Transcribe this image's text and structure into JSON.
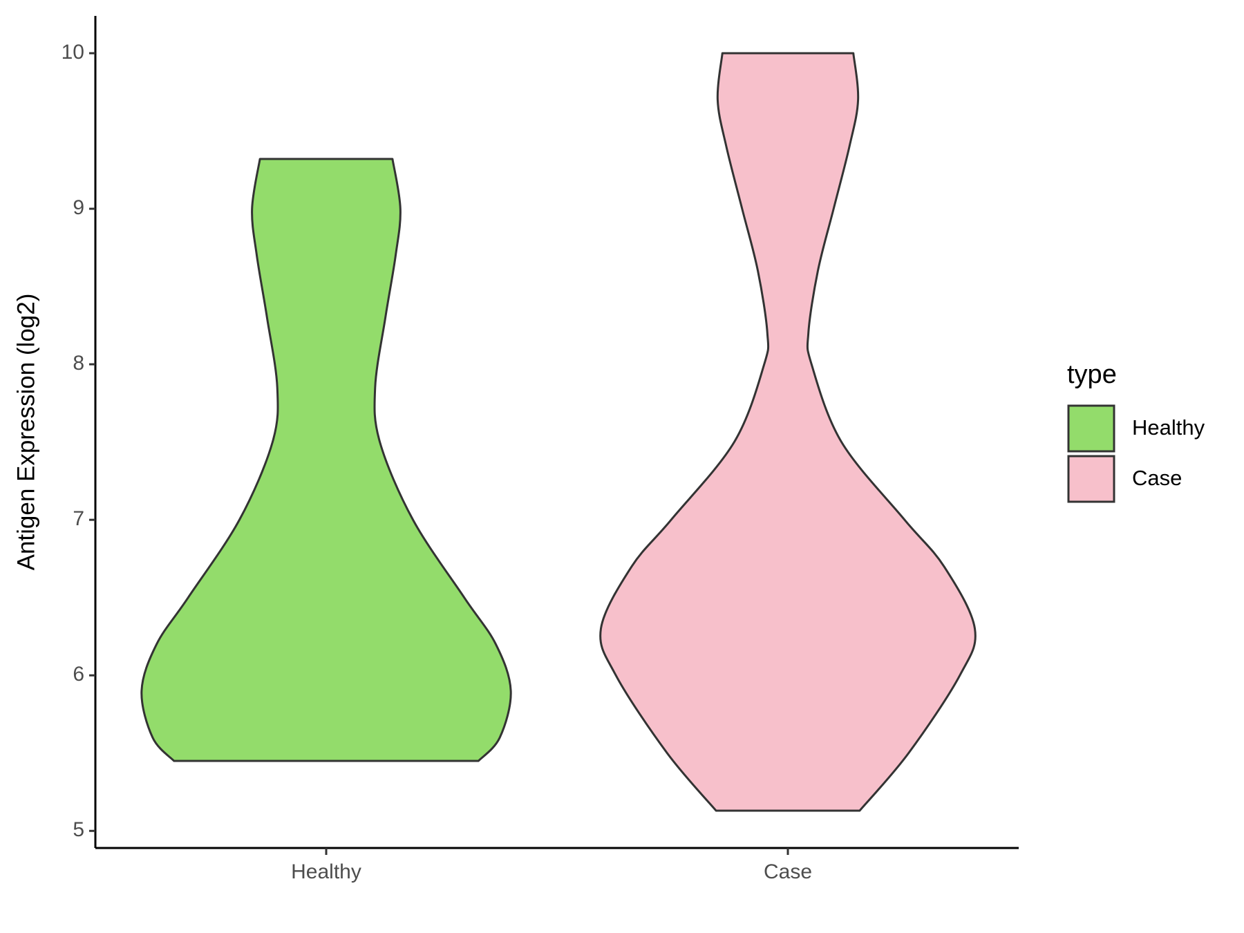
{
  "chart_data": {
    "type": "violin",
    "y_label": "Antigen Expression (log2)",
    "legend_title": "type",
    "categories": [
      "Healthy",
      "Case"
    ],
    "colors": [
      "#93dc6b",
      "#f7c0cb"
    ],
    "violins": [
      {
        "y": [
          5.45,
          5.6,
          5.9,
          6.2,
          6.5,
          7.0,
          7.5,
          7.85,
          8.3,
          8.7,
          9.0,
          9.32
        ],
        "width": [
          0.193,
          0.22,
          0.234,
          0.215,
          0.175,
          0.11,
          0.068,
          0.062,
          0.075,
          0.088,
          0.094,
          0.084
        ]
      },
      {
        "y": [
          5.13,
          5.5,
          6.0,
          6.3,
          6.7,
          7.0,
          7.5,
          8.0,
          8.2,
          8.6,
          9.0,
          9.4,
          9.7,
          10.0
        ],
        "width": [
          0.091,
          0.153,
          0.218,
          0.237,
          0.198,
          0.148,
          0.068,
          0.03,
          0.026,
          0.038,
          0.058,
          0.078,
          0.089,
          0.083
        ]
      }
    ],
    "ylim": [
      4.89,
      10.24
    ],
    "yticks": [
      5,
      6,
      7,
      8,
      9,
      10
    ]
  }
}
